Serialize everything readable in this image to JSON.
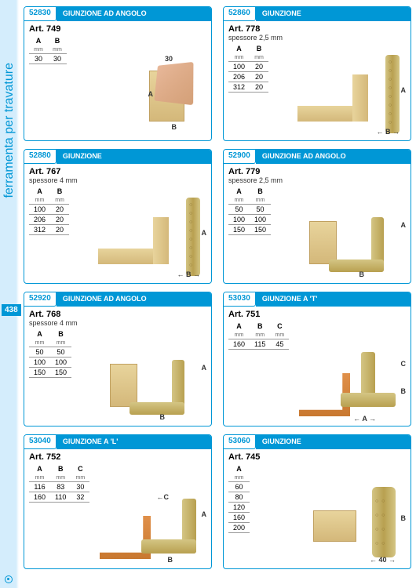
{
  "sidebar_label": "ferramenta per travature",
  "page_number": "438",
  "cards": [
    {
      "code": "52830",
      "title": "GIUNZIONE AD ANGOLO",
      "art": "Art. 749",
      "sub": "",
      "cols": [
        "A",
        "B"
      ],
      "units": [
        "mm",
        "mm"
      ],
      "rows": [
        [
          "30",
          "30"
        ]
      ],
      "kind": "corner",
      "dim30": "30"
    },
    {
      "code": "52860",
      "title": "GIUNZIONE",
      "art": "Art. 778",
      "sub": "spessore 2,5 mm",
      "cols": [
        "A",
        "B"
      ],
      "units": [
        "mm",
        "mm"
      ],
      "rows": [
        [
          "100",
          "20"
        ],
        [
          "206",
          "20"
        ],
        [
          "312",
          "20"
        ]
      ],
      "kind": "flat"
    },
    {
      "code": "52880",
      "title": "GIUNZIONE",
      "art": "Art. 767",
      "sub": "spessore 4 mm",
      "cols": [
        "A",
        "B"
      ],
      "units": [
        "mm",
        "mm"
      ],
      "rows": [
        [
          "100",
          "20"
        ],
        [
          "206",
          "20"
        ],
        [
          "312",
          "20"
        ]
      ],
      "kind": "flat"
    },
    {
      "code": "52900",
      "title": "GIUNZIONE AD ANGOLO",
      "art": "Art. 779",
      "sub": "spessore 2,5 mm",
      "cols": [
        "A",
        "B"
      ],
      "units": [
        "mm",
        "mm"
      ],
      "rows": [
        [
          "50",
          "50"
        ],
        [
          "100",
          "100"
        ],
        [
          "150",
          "150"
        ]
      ],
      "kind": "angle"
    },
    {
      "code": "52920",
      "title": "GIUNZIONE AD ANGOLO",
      "art": "Art. 768",
      "sub": "spessore 4 mm",
      "cols": [
        "A",
        "B"
      ],
      "units": [
        "mm",
        "mm"
      ],
      "rows": [
        [
          "50",
          "50"
        ],
        [
          "100",
          "100"
        ],
        [
          "150",
          "150"
        ]
      ],
      "kind": "angle"
    },
    {
      "code": "53030",
      "title": "GIUNZIONE A 'T'",
      "art": "Art. 751",
      "sub": "",
      "cols": [
        "A",
        "B",
        "C"
      ],
      "units": [
        "mm",
        "mm",
        "mm"
      ],
      "rows": [
        [
          "160",
          "115",
          "45"
        ]
      ],
      "kind": "tee"
    },
    {
      "code": "53040",
      "title": "GIUNZIONE A 'L'",
      "art": "Art. 752",
      "sub": "",
      "cols": [
        "A",
        "B",
        "C"
      ],
      "units": [
        "mm",
        "mm",
        "mm"
      ],
      "rows": [
        [
          "116",
          "83",
          "30"
        ],
        [
          "160",
          "110",
          "32"
        ]
      ],
      "kind": "ell"
    },
    {
      "code": "53060",
      "title": "GIUNZIONE",
      "art": "Art. 745",
      "sub": "",
      "cols": [
        "A"
      ],
      "units": [
        "mm"
      ],
      "rows": [
        [
          "60"
        ],
        [
          "80"
        ],
        [
          "120"
        ],
        [
          "160"
        ],
        [
          "200"
        ]
      ],
      "kind": "plate",
      "dim40": "40"
    }
  ]
}
